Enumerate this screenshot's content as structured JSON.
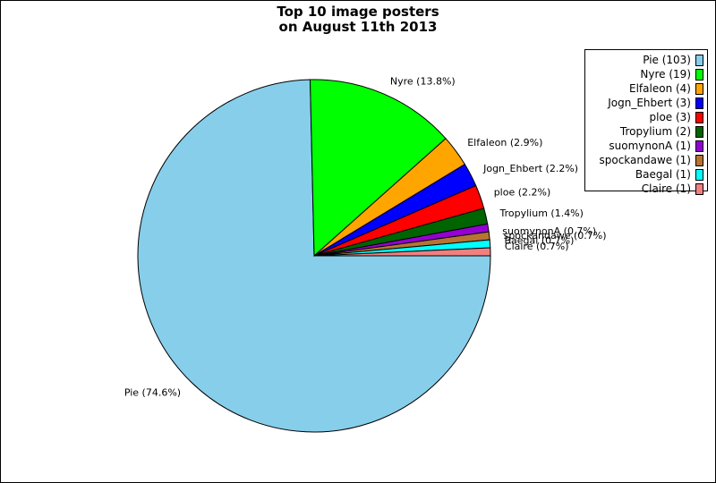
{
  "chart_data": {
    "type": "pie",
    "title_lines": [
      "Top 10 image posters",
      "on August 11th 2013"
    ],
    "slices": [
      {
        "name": "Pie",
        "value": 103,
        "percent_label": "Pie (74.6%)",
        "legend_label": "Pie (103)",
        "color": "#87CEEB"
      },
      {
        "name": "Nyre",
        "value": 19,
        "percent_label": "Nyre (13.8%)",
        "legend_label": "Nyre (19)",
        "color": "#00FF00"
      },
      {
        "name": "Elfaleon",
        "value": 4,
        "percent_label": "Elfaleon (2.9%)",
        "legend_label": "Elfaleon (4)",
        "color": "#FFA500"
      },
      {
        "name": "Jogn_Ehbert",
        "value": 3,
        "percent_label": "Jogn_Ehbert (2.2%)",
        "legend_label": "Jogn_Ehbert (3)",
        "color": "#0000FF"
      },
      {
        "name": "ploe",
        "value": 3,
        "percent_label": "ploe (2.2%)",
        "legend_label": "ploe (3)",
        "color": "#FF0000"
      },
      {
        "name": "Tropylium",
        "value": 2,
        "percent_label": "Tropylium (1.4%)",
        "legend_label": "Tropylium (2)",
        "color": "#006400"
      },
      {
        "name": "suomynonA",
        "value": 1,
        "percent_label": "suomynonA (0.7%)",
        "legend_label": "suomynonA (1)",
        "color": "#9400D3"
      },
      {
        "name": "spockandawe",
        "value": 1,
        "percent_label": "spockandawe (0.7%)",
        "legend_label": "spockandawe (1)",
        "color": "#B87333"
      },
      {
        "name": "Baegal",
        "value": 1,
        "percent_label": "Baegal (0.7%)",
        "legend_label": "Baegal (1)",
        "color": "#00FFFF"
      },
      {
        "name": "Claire",
        "value": 1,
        "percent_label": "Claire (0.7%)",
        "legend_label": "Claire (1)",
        "color": "#F08080"
      }
    ],
    "legend_position": "top-right",
    "start_direction": "right",
    "rotation": "clockwise"
  }
}
